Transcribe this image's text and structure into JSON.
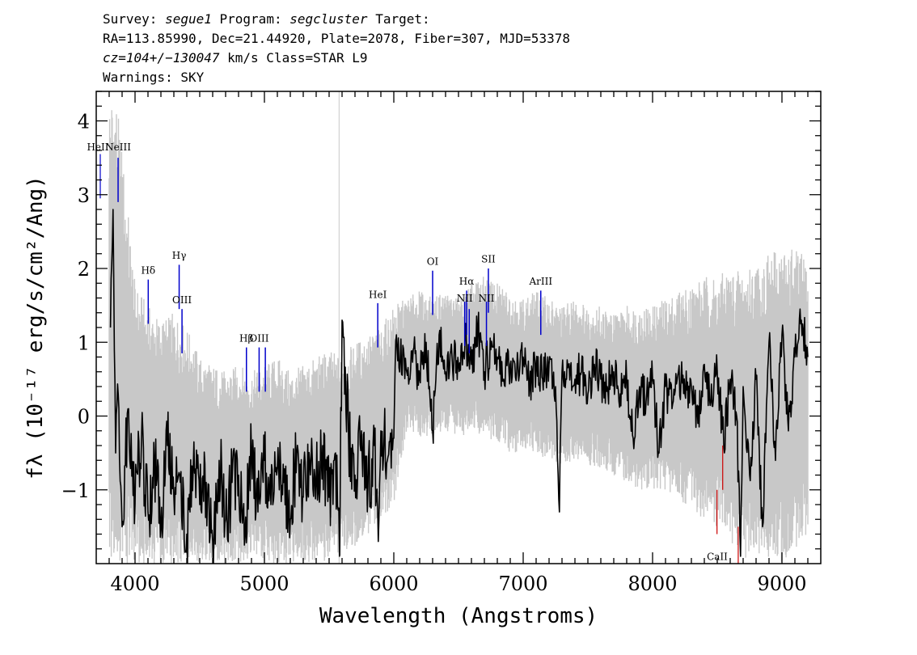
{
  "header": {
    "line1": {
      "survey_label": "Survey:",
      "survey": "segue1",
      "program_label": "Program:",
      "program": "segcluster",
      "target_label": "Target:"
    },
    "line2": "RA=113.85990, Dec=21.44920, Plate=2078, Fiber=307, MJD=53378",
    "line3": {
      "cz": "cz=104+/−130047",
      "rest": "km/s Class=STAR L9"
    },
    "line4": "Warnings: SKY"
  },
  "chart_data": {
    "type": "line",
    "xlabel": "Wavelength (Angstroms)",
    "ylabel": "fλ (10⁻¹⁷ erg/s/cm²/Ang)",
    "xlim": [
      3700,
      9300
    ],
    "ylim": [
      -2,
      4.4
    ],
    "x_ticks": [
      4000,
      5000,
      6000,
      7000,
      8000,
      9000
    ],
    "y_ticks": [
      -1,
      0,
      1,
      2,
      3,
      4
    ],
    "y_tick_labels": [
      "−1",
      "0",
      "1",
      "2",
      "3",
      "4"
    ],
    "grid": false,
    "colors": {
      "flux": "#000000",
      "error": "#c8c8c8",
      "emission": "#0000cc",
      "absorption": "#cc0000"
    },
    "series": [
      {
        "role": "flux",
        "color": "#000000",
        "x": [
          3810,
          3830,
          3850,
          3870,
          3900,
          3950,
          4000,
          4050,
          4100,
          4150,
          4200,
          4250,
          4300,
          4350,
          4400,
          4450,
          4500,
          4550,
          4600,
          4650,
          4700,
          4750,
          4800,
          4850,
          4900,
          4950,
          5000,
          5050,
          5100,
          5150,
          5200,
          5250,
          5300,
          5350,
          5400,
          5450,
          5500,
          5550,
          5580,
          5600,
          5650,
          5700,
          5750,
          5800,
          5850,
          5880,
          5900,
          5950,
          6000,
          6020,
          6050,
          6100,
          6150,
          6200,
          6250,
          6300,
          6350,
          6400,
          6450,
          6500,
          6550,
          6600,
          6650,
          6700,
          6750,
          6800,
          6850,
          6900,
          6950,
          7000,
          7050,
          7100,
          7150,
          7200,
          7250,
          7280,
          7300,
          7350,
          7400,
          7450,
          7500,
          7550,
          7600,
          7650,
          7700,
          7750,
          7800,
          7850,
          7900,
          7950,
          8000,
          8050,
          8100,
          8150,
          8200,
          8250,
          8300,
          8350,
          8400,
          8450,
          8500,
          8550,
          8600,
          8650,
          8680,
          8700,
          8750,
          8800,
          8850,
          8900,
          8950,
          9000,
          9050,
          9100,
          9150,
          9200
        ],
        "y": [
          1.2,
          2.8,
          -0.5,
          0.3,
          -1.5,
          0.1,
          -1.2,
          -0.3,
          -1.3,
          -0.6,
          -1.5,
          -0.4,
          -1.1,
          -0.9,
          -1.6,
          -0.7,
          -1.2,
          -0.9,
          -1.7,
          -0.6,
          -1.4,
          -0.9,
          -0.8,
          -1.6,
          -0.5,
          -1.3,
          -0.6,
          -1.2,
          -0.7,
          -0.9,
          -1.4,
          -0.5,
          -1.1,
          -0.6,
          -0.9,
          -0.4,
          -1.1,
          -0.5,
          -1.9,
          1.3,
          -0.3,
          -0.8,
          -0.2,
          -1.0,
          -0.4,
          -1.7,
          -0.2,
          -0.6,
          -0.3,
          1.1,
          0.8,
          0.6,
          0.9,
          0.5,
          1.0,
          -0.2,
          1.1,
          0.6,
          0.8,
          0.7,
          1.0,
          0.7,
          1.2,
          0.6,
          0.9,
          0.8,
          0.5,
          0.7,
          0.6,
          0.8,
          0.4,
          0.7,
          0.5,
          0.7,
          0.4,
          -1.3,
          0.6,
          0.7,
          0.5,
          0.6,
          0.3,
          0.7,
          0.5,
          0.4,
          0.6,
          0.3,
          0.5,
          -0.3,
          0.4,
          0.2,
          0.5,
          -0.5,
          0.4,
          0.1,
          0.6,
          0.3,
          0.4,
          -0.1,
          0.7,
          0.2,
          0.6,
          -0.4,
          0.5,
          0.0,
          -1.9,
          0.4,
          -0.8,
          0.5,
          -1.5,
          1.0,
          -0.6,
          1.1,
          -0.2,
          0.8,
          1.3,
          0.8
        ]
      },
      {
        "role": "error",
        "color": "#c8c8c8",
        "x": [
          3800,
          3850,
          3900,
          4000,
          4100,
          4200,
          4300,
          4400,
          4500,
          4600,
          4700,
          4800,
          4900,
          5000,
          5100,
          5200,
          5300,
          5400,
          5500,
          5600,
          5700,
          5800,
          5900,
          6000,
          6100,
          6200,
          6300,
          6400,
          6500,
          6600,
          6700,
          6800,
          6900,
          7000,
          7100,
          7200,
          7300,
          7400,
          7500,
          7600,
          7700,
          7800,
          7900,
          8000,
          8100,
          8200,
          8300,
          8400,
          8500,
          8600,
          8700,
          8800,
          8900,
          9000,
          9100,
          9200
        ],
        "upper": [
          4.4,
          4.4,
          3.6,
          1.8,
          1.5,
          1.3,
          1.4,
          1.2,
          0.8,
          0.7,
          0.6,
          0.7,
          0.6,
          0.7,
          0.8,
          0.6,
          0.7,
          0.8,
          0.9,
          0.8,
          1.0,
          1.1,
          1.2,
          1.5,
          1.6,
          1.7,
          1.6,
          1.7,
          1.6,
          1.8,
          1.9,
          1.8,
          1.7,
          1.6,
          1.7,
          1.6,
          1.5,
          1.6,
          1.5,
          1.5,
          1.4,
          1.5,
          1.5,
          1.5,
          1.6,
          1.7,
          1.8,
          1.9,
          1.9,
          2.0,
          2.0,
          2.1,
          2.2,
          2.3,
          2.3,
          2.1
        ],
        "lower": [
          -2.0,
          -2.0,
          -2.0,
          -2.0,
          -2.0,
          -2.0,
          -2.0,
          -2.0,
          -2.0,
          -2.0,
          -2.0,
          -2.0,
          -2.0,
          -2.0,
          -2.0,
          -2.0,
          -2.0,
          -2.0,
          -2.0,
          -1.9,
          -1.8,
          -1.6,
          -1.5,
          -1.2,
          -0.2,
          -0.3,
          -0.3,
          -0.2,
          -0.3,
          -0.2,
          -0.3,
          -0.4,
          -0.5,
          -0.5,
          -0.5,
          -0.6,
          -0.7,
          -0.6,
          -0.7,
          -0.7,
          -0.8,
          -0.9,
          -1.0,
          -1.0,
          -1.0,
          -1.1,
          -1.3,
          -1.4,
          -1.5,
          -1.7,
          -1.9,
          -2.0,
          -2.0,
          -2.0,
          -1.8,
          -1.6
        ]
      }
    ],
    "emission_lines": [
      {
        "label": "NeIII",
        "x": 3869,
        "y0": 2.9,
        "y1": 3.5,
        "label_y": 3.6
      },
      {
        "label": "Hδ",
        "x": 4102,
        "y0": 1.25,
        "y1": 1.85,
        "label_y": 1.93
      },
      {
        "label": "Hγ",
        "x": 4341,
        "y0": 1.45,
        "y1": 2.05,
        "label_y": 2.13
      },
      {
        "label": "OIII",
        "x": 4363,
        "y0": 0.85,
        "y1": 1.45,
        "label_y": 1.53
      },
      {
        "label": "Hβ",
        "x": 4861,
        "y0": 0.33,
        "y1": 0.93,
        "label_y": 1.01
      },
      {
        "label": "OIII",
        "x": 4959,
        "y0": 0.33,
        "y1": 0.93,
        "label_y": 1.01
      },
      {
        "label": "",
        "x": 5007,
        "y0": 0.33,
        "y1": 0.93,
        "label_y": 1.01
      },
      {
        "label": "HeI",
        "x": 5876,
        "y0": 0.93,
        "y1": 1.53,
        "label_y": 1.6
      },
      {
        "label": "OI",
        "x": 6300,
        "y0": 1.37,
        "y1": 1.97,
        "label_y": 2.05
      },
      {
        "label": "NII",
        "x": 6548,
        "y0": 0.95,
        "y1": 1.55,
        "label_y": 1.55
      },
      {
        "label": "Hα",
        "x": 6563,
        "y0": 1.1,
        "y1": 1.7,
        "label_y": 1.78
      },
      {
        "label": "",
        "x": 6583,
        "y0": 0.85,
        "y1": 1.45,
        "label_y": 1.45
      },
      {
        "label": "NII",
        "x": 6716,
        "y0": 0.95,
        "y1": 1.55,
        "label_y": 1.55
      },
      {
        "label": "SII",
        "x": 6731,
        "y0": 1.4,
        "y1": 2.0,
        "label_y": 2.08
      },
      {
        "label": "ArIII",
        "x": 7136,
        "y0": 1.1,
        "y1": 1.7,
        "label_y": 1.78
      }
    ],
    "emission_left_labels": [
      {
        "label": "HeII",
        "x": 3750,
        "y0": 2.95,
        "y1": 3.55,
        "label_y": 3.6
      }
    ],
    "absorption_lines": [
      {
        "label": "",
        "x": 8498,
        "y0": -1.6,
        "y1": -1.0
      },
      {
        "label": "",
        "x": 8542,
        "y0": -1.0,
        "y1": -0.4
      },
      {
        "label": "CaII",
        "x": 8662,
        "y0": -2.0,
        "y1": -1.5,
        "label_x": 8500,
        "label_y": -1.95
      }
    ],
    "sky_line_x": 5577
  }
}
